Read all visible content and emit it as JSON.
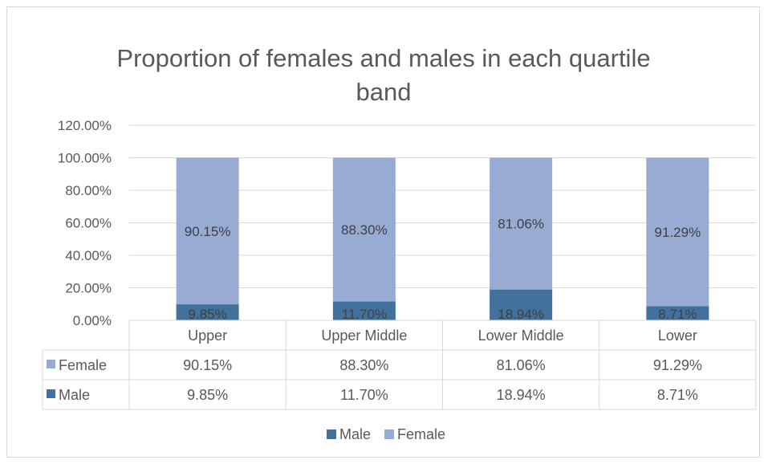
{
  "chart_data": {
    "type": "bar",
    "stacked": true,
    "title_lines": [
      "Proportion of females and males in each quartile",
      "band"
    ],
    "categories": [
      "Upper",
      "Upper Middle",
      "Lower Middle",
      "Lower"
    ],
    "series": [
      {
        "name": "Male",
        "color": "#41719c",
        "values": [
          9.85,
          11.7,
          18.94,
          8.71
        ],
        "labels": [
          "9.85%",
          "11.70%",
          "18.94%",
          "8.71%"
        ]
      },
      {
        "name": "Female",
        "color": "#97abd3",
        "values": [
          90.15,
          88.3,
          81.06,
          91.29
        ],
        "labels": [
          "90.15%",
          "88.30%",
          "81.06%",
          "91.29%"
        ]
      }
    ],
    "ylim": [
      0,
      120
    ],
    "yticks": [
      0,
      20,
      40,
      60,
      80,
      100,
      120
    ],
    "ytick_labels": [
      "0.00%",
      "20.00%",
      "40.00%",
      "60.00%",
      "80.00%",
      "100.00%",
      "120.00%"
    ],
    "grid": true,
    "data_table": {
      "rows": [
        {
          "series": "Female",
          "color": "#97abd3",
          "cells": [
            "90.15%",
            "88.30%",
            "81.06%",
            "91.29%"
          ]
        },
        {
          "series": "Male",
          "color": "#41719c",
          "cells": [
            "9.85%",
            "11.70%",
            "18.94%",
            "8.71%"
          ]
        }
      ]
    },
    "legend": {
      "position": "bottom",
      "items": [
        {
          "name": "Male",
          "color": "#41719c"
        },
        {
          "name": "Female",
          "color": "#97abd3"
        }
      ]
    }
  }
}
